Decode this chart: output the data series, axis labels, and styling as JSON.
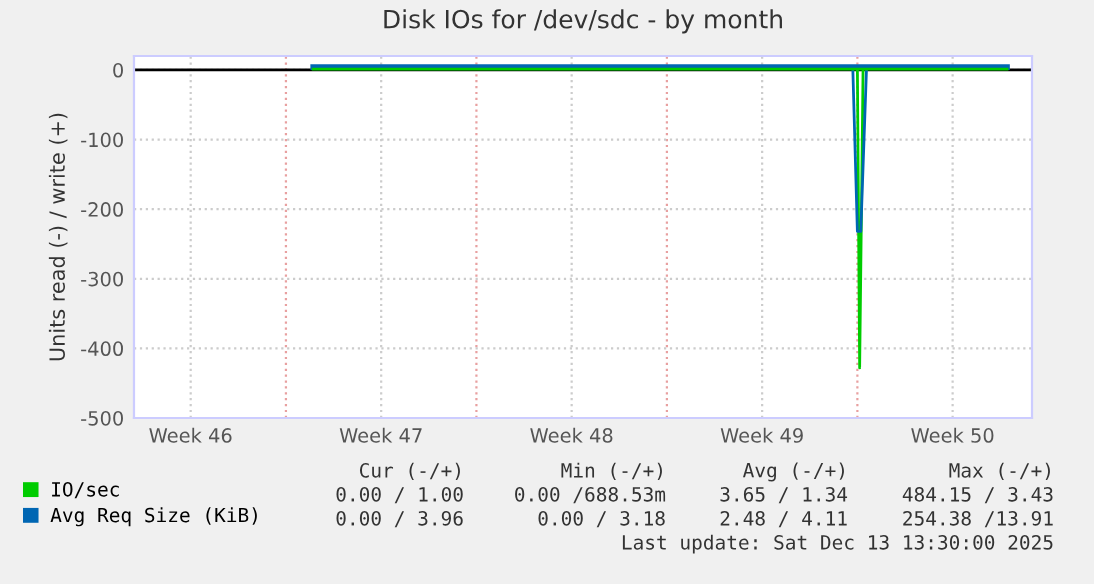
{
  "chart_data": {
    "type": "line",
    "title": "Disk IOs for /dev/sdc - by month",
    "ylabel": "Units read (-) / write (+)",
    "x": [
      "2025-11-18T00:00",
      "2025-11-21T00:00",
      "2025-11-24T00:00",
      "2025-11-27T00:00",
      "2025-11-30T00:00",
      "2025-12-03T00:00",
      "2025-12-06T00:00",
      "2025-12-10T00:00",
      "2025-12-13T12:00"
    ],
    "series": [
      {
        "name": "IO/sec",
        "color": "#00cc00",
        "values": [
          1,
          1,
          1,
          1,
          1,
          1,
          1,
          1,
          1
        ]
      },
      {
        "name": "Avg Req Size (KiB)",
        "color": "#0066b3",
        "values": [
          4,
          4,
          4,
          4,
          4,
          4,
          4,
          4,
          4
        ]
      },
      {
        "color": "#0066b3",
        "x": [
          "2025-12-07T20:00",
          "2025-12-08T00:00",
          "2025-12-08T03:00",
          "2025-12-08T08:00"
        ],
        "values": [
          0,
          -232,
          -232,
          0
        ]
      },
      {
        "color": "#00cc00",
        "x": [
          "2025-12-08T00:00",
          "2025-12-08T02:00",
          "2025-12-08T05:00"
        ],
        "values": [
          0,
          -428,
          0
        ]
      }
    ],
    "xlim": [
      "2025-11-11T10:00",
      "2025-12-14T10:00"
    ],
    "xticks": [
      {
        "value": "2025-11-13T12:00",
        "label": "Week 46"
      },
      {
        "value": "2025-11-20T12:00",
        "label": "Week 47"
      },
      {
        "value": "2025-11-27T12:00",
        "label": "Week 48"
      },
      {
        "value": "2025-12-04T12:00",
        "label": "Week 49"
      },
      {
        "value": "2025-12-11T12:00",
        "label": "Week 50"
      }
    ],
    "ylim": [
      -500,
      20
    ],
    "yticks": [
      -500,
      -400,
      -300,
      -200,
      -100,
      0
    ],
    "ref_lines": [
      {
        "axis": "y",
        "value": 0,
        "color": "#000000",
        "line_style": "solid"
      },
      {
        "axis": "x",
        "value": "2025-11-17T00:00",
        "color": "#e8a0a0",
        "line_style": "dotted"
      },
      {
        "axis": "x",
        "value": "2025-11-24T00:00",
        "color": "#e8a0a0",
        "line_style": "dotted"
      },
      {
        "axis": "x",
        "value": "2025-12-01T00:00",
        "color": "#e8a0a0",
        "line_style": "dotted"
      },
      {
        "axis": "x",
        "value": "2025-12-08T00:00",
        "color": "#e8a0a0",
        "line_style": "dotted"
      }
    ],
    "grid": true,
    "legend": "bottom left",
    "marker": "none",
    "line_style": "solid",
    "annotations": [
      "Cur (-/+)",
      "Min (-/+)",
      "Avg (-/+)",
      "Max (-/+)",
      "0.00 / 1.00",
      "0.00 /688.53m",
      "3.65 / 1.34",
      "484.15 / 3.43",
      "0.00 / 3.96",
      "0.00 / 3.18",
      "2.48 / 4.11",
      "254.38 /13.91",
      "Last update: Sat Dec 13 13:30:00 2025"
    ]
  }
}
